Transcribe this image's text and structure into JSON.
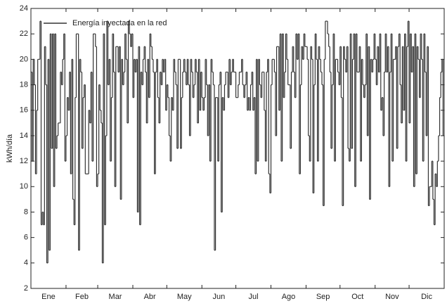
{
  "chart_data": {
    "type": "line",
    "y_label": "kWh/día",
    "months": [
      "Ene",
      "Feb",
      "Mar",
      "Abr",
      "May",
      "Jun",
      "Jul",
      "Ago",
      "Sep",
      "Oct",
      "Nov",
      "Dic"
    ],
    "xlim": [
      0,
      365
    ],
    "xticks": [
      0,
      31,
      59,
      90,
      120,
      151,
      181,
      212,
      243,
      273,
      304,
      334,
      365
    ],
    "ylim": [
      2,
      24
    ],
    "yticks": [
      2,
      4,
      6,
      8,
      10,
      12,
      14,
      16,
      18,
      20,
      22,
      24
    ],
    "legend": "upper left",
    "series": [
      {
        "name": "Energía inyectada en la red",
        "color": "#333333",
        "values": [
          19,
          12,
          20,
          18,
          11,
          16,
          20,
          20,
          23,
          7,
          8,
          7,
          21,
          18,
          4,
          20,
          5,
          22,
          13,
          22,
          10,
          22,
          13,
          14,
          15,
          15,
          19,
          18,
          20,
          22,
          12,
          14,
          17,
          16,
          19,
          11,
          20,
          9,
          7,
          17,
          22,
          22,
          5,
          20,
          19,
          13,
          17,
          18,
          11,
          11,
          11,
          16,
          15,
          19,
          12,
          22,
          22,
          21,
          10,
          11,
          18,
          16,
          15,
          4,
          22,
          7,
          14,
          23,
          18,
          20,
          12,
          17,
          22,
          19,
          10,
          21,
          21,
          19,
          21,
          9,
          20,
          18,
          19,
          22,
          20,
          15,
          23,
          22,
          21,
          22,
          17,
          20,
          19,
          20,
          8,
          21,
          7,
          19,
          18,
          20,
          21,
          19,
          15,
          20,
          17,
          22,
          21,
          20,
          19,
          11,
          19,
          20,
          17,
          15,
          19,
          18,
          20,
          19,
          20,
          16,
          18,
          17,
          14,
          12,
          17,
          16,
          20,
          19,
          18,
          13,
          20,
          20,
          13,
          17,
          19,
          20,
          19,
          18,
          20,
          18,
          14,
          20,
          19,
          17,
          18,
          20,
          19,
          15,
          20,
          16,
          19,
          17,
          16,
          17,
          20,
          18,
          14,
          18,
          12,
          20,
          19,
          18,
          5,
          17,
          17,
          12,
          18,
          19,
          8,
          17,
          16,
          18,
          19,
          19,
          17,
          20,
          18,
          19,
          20,
          19,
          19,
          17,
          17,
          18,
          19,
          19,
          20,
          18,
          17,
          18,
          19,
          16,
          17,
          16,
          18,
          19,
          16,
          17,
          11,
          20,
          12,
          20,
          18,
          17,
          19,
          19,
          16,
          12,
          19,
          20,
          11,
          9.5,
          18,
          20,
          20,
          19,
          14,
          21,
          21,
          16,
          22,
          12,
          22,
          17,
          19,
          22,
          20,
          18,
          18,
          13,
          19,
          21,
          19,
          17,
          22,
          20,
          22,
          11,
          18,
          21,
          20,
          22,
          21,
          21,
          20,
          14,
          12,
          21,
          20,
          9.5,
          18,
          22,
          20,
          12,
          21,
          20,
          19,
          18,
          8.5,
          20,
          23,
          23,
          22,
          21,
          19,
          13,
          18,
          22,
          12,
          20,
          20,
          19,
          18,
          21,
          17,
          8.5,
          21,
          20,
          19,
          21,
          13,
          12,
          22,
          13,
          20,
          22,
          10,
          22,
          19,
          19,
          21,
          12,
          20,
          18,
          17,
          18,
          22,
          14,
          21,
          9,
          20,
          19,
          20,
          22,
          20,
          18,
          21,
          19,
          22,
          16,
          17,
          14,
          19,
          22,
          19,
          21,
          10,
          19,
          22,
          12,
          20,
          20,
          21,
          13,
          21,
          22,
          18,
          15,
          21,
          16,
          22,
          12,
          21,
          23,
          15,
          22,
          19,
          21,
          10,
          22,
          11,
          21,
          20,
          17,
          22,
          20,
          12,
          22,
          19,
          14,
          21,
          8.5,
          10,
          10,
          12,
          9,
          7,
          11,
          10,
          12,
          14,
          17,
          19,
          20,
          14
        ]
      }
    ]
  }
}
